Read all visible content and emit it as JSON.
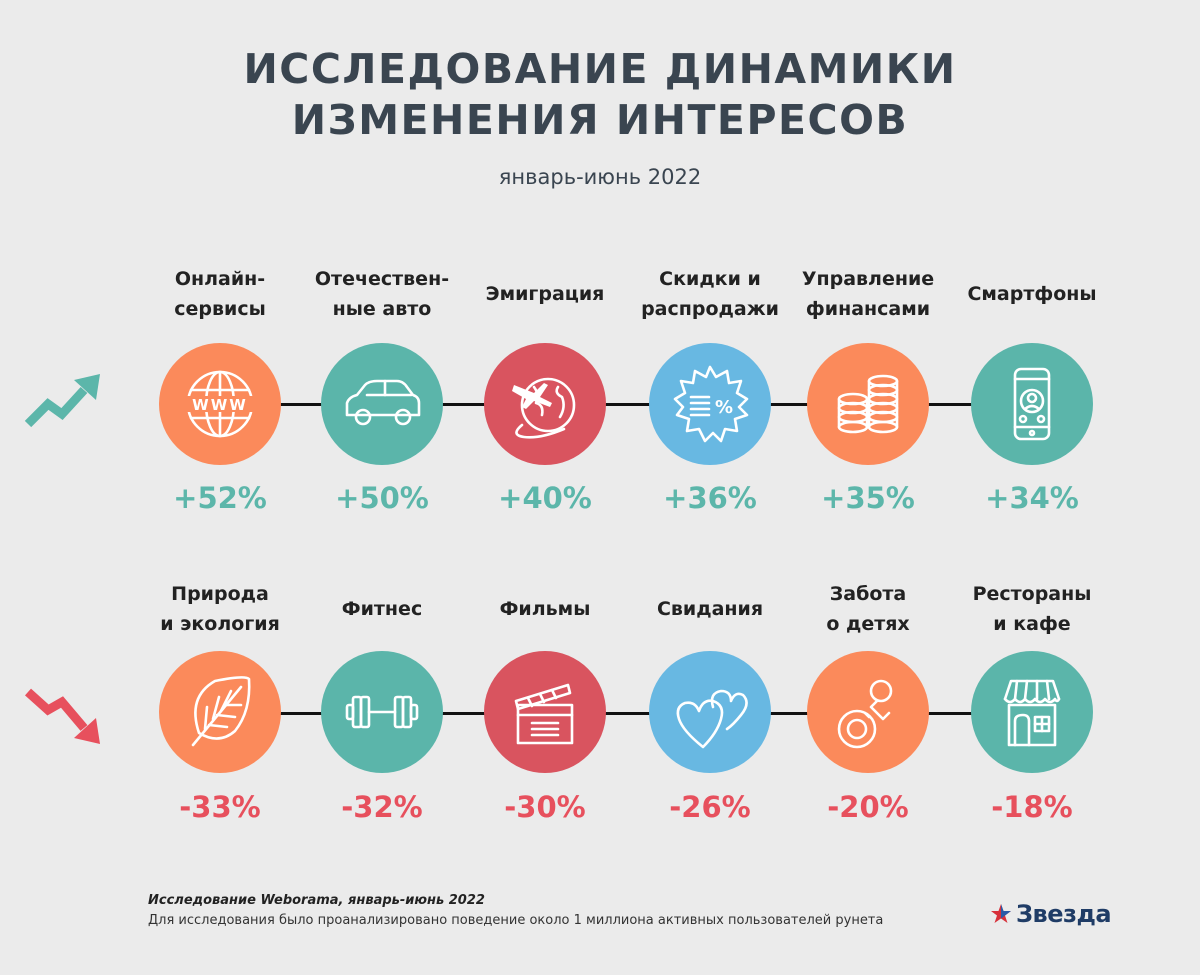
{
  "header": {
    "title_line1": "ИССЛЕДОВАНИЕ ДИНАМИКИ",
    "title_line2": "ИЗМЕНЕНИЯ ИНТЕРЕСОВ",
    "subtitle": "январь-июнь 2022"
  },
  "colors": {
    "orange": "#fb8a5b",
    "teal": "#5bb5aa",
    "red": "#d9545f",
    "blue": "#68b8e2",
    "up": "#5cb6aa",
    "down": "#e7505d"
  },
  "chart_data": {
    "type": "table",
    "title": "ИССЛЕДОВАНИЕ ДИНАМИКИ ИЗМЕНЕНИЯ ИНТЕРЕСОВ",
    "subtitle": "январь-июнь 2022",
    "rows": [
      {
        "name": "growth",
        "trend": "up",
        "items": [
          {
            "label": "Онлайн-\nсервисы",
            "value": "+52%",
            "color": "orange",
            "icon": "www-globe-icon"
          },
          {
            "label": "Отечествен-\nные авто",
            "value": "+50%",
            "color": "teal",
            "icon": "car-icon"
          },
          {
            "label": "Эмиграция",
            "value": "+40%",
            "color": "red",
            "icon": "plane-globe-icon"
          },
          {
            "label": "Скидки и\nраспродажи",
            "value": "+36%",
            "color": "blue",
            "icon": "discount-badge-icon"
          },
          {
            "label": "Управление\nфинансами",
            "value": "+35%",
            "color": "orange",
            "icon": "coins-icon"
          },
          {
            "label": "Смартфоны",
            "value": "+34%",
            "color": "teal",
            "icon": "smartphone-icon"
          }
        ]
      },
      {
        "name": "decline",
        "trend": "down",
        "items": [
          {
            "label": "Природа\nи экология",
            "value": "-33%",
            "color": "orange",
            "icon": "leaf-icon"
          },
          {
            "label": "Фитнес",
            "value": "-32%",
            "color": "teal",
            "icon": "dumbbell-icon"
          },
          {
            "label": "Фильмы",
            "value": "-30%",
            "color": "red",
            "icon": "clapperboard-icon"
          },
          {
            "label": "Свидания",
            "value": "-26%",
            "color": "blue",
            "icon": "hearts-icon"
          },
          {
            "label": "Забота\nо детях",
            "value": "-20%",
            "color": "orange",
            "icon": "pacifier-icon"
          },
          {
            "label": "Рестораны\nи кафе",
            "value": "-18%",
            "color": "teal",
            "icon": "cafe-storefront-icon"
          }
        ]
      }
    ]
  },
  "footer": {
    "source": "Исследование Weborama, январь-июнь 2022",
    "note": "Для исследования было проанализировано поведение около 1 миллиона активных пользователей рунета",
    "logo_text": "Звезда"
  }
}
